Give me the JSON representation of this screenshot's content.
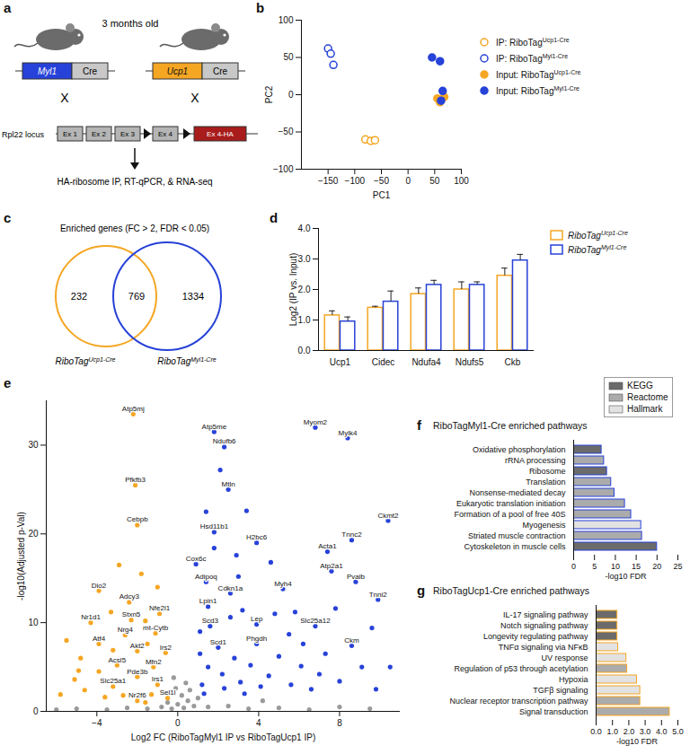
{
  "chart_data": [
    {
      "type": "diagram",
      "panel": "a",
      "title": "3 months old",
      "left": {
        "gene": "Myl1",
        "driver": "Cre",
        "color": "#2742d8"
      },
      "right": {
        "gene": "Ucp1",
        "driver": "Cre",
        "color": "#f5a623"
      },
      "cross": "X",
      "locus": {
        "name": "Rpl22 locus",
        "exons": [
          "Ex 1",
          "Ex 2",
          "Ex 3",
          "Ex 4"
        ],
        "tagged_exon": "Ex 4-HA"
      },
      "caption": "HA-ribosome IP, RT-qPCR, & RNA-seq"
    },
    {
      "type": "scatter",
      "panel": "b",
      "xlabel": "PC1",
      "ylabel": "PC2",
      "xlim": [
        -200,
        100
      ],
      "xticks": [
        -150,
        -100,
        -50,
        0,
        50,
        100
      ],
      "ylim": [
        -100,
        100
      ],
      "yticks": [
        -100,
        -50,
        0,
        50,
        100
      ],
      "legend": "right",
      "series": [
        {
          "name": "IP: RiboTagUcp1-Cre",
          "superscript": "Ucp1-Cre",
          "color": "#f5a623",
          "marker": "circle-open",
          "x": [
            -80,
            -70,
            -62
          ],
          "y": [
            -60,
            -62,
            -61
          ]
        },
        {
          "name": "IP: RiboTagMyl1-Cre",
          "superscript": "Myl1-Cre",
          "color": "#2742d8",
          "marker": "circle-open",
          "x": [
            -150,
            -145,
            -140
          ],
          "y": [
            62,
            55,
            40
          ]
        },
        {
          "name": "Input: RiboTagUcp1-Cre",
          "superscript": "Ucp1-Cre",
          "color": "#f5a623",
          "marker": "circle",
          "x": [
            55,
            60,
            68
          ],
          "y": [
            -5,
            -10,
            -3
          ]
        },
        {
          "name": "Input: RiboTagMyl1-Cre",
          "superscript": "Myl1-Cre",
          "color": "#2742d8",
          "marker": "circle",
          "x": [
            45,
            60,
            65,
            62
          ],
          "y": [
            50,
            45,
            5,
            -8
          ]
        }
      ]
    },
    {
      "type": "venn",
      "panel": "c",
      "title": "Enriched genes (FC > 2, FDR < 0.05)",
      "sets": [
        {
          "name": "RiboTagUcp1-Cre",
          "superscript": "Ucp1-Cre",
          "color": "#f5a623",
          "only": 232
        },
        {
          "name": "RiboTagMyl1-Cre",
          "superscript": "Myl1-Cre",
          "color": "#2742d8",
          "only": 1334
        }
      ],
      "intersection": 769
    },
    {
      "type": "bar",
      "panel": "d",
      "ylabel": "Log2 (IP vs. Input)",
      "categories": [
        "Ucp1",
        "Cidec",
        "Ndufa4",
        "Ndufs5",
        "Ckb"
      ],
      "ylim": [
        0,
        4
      ],
      "yticks": [
        0,
        1,
        2,
        3,
        4
      ],
      "legend": "right",
      "series": [
        {
          "name": "RiboTagUcp1-Cre",
          "superscript": "Ucp1-Cre",
          "color": "#f5a623",
          "values": [
            1.15,
            1.4,
            1.85,
            2.0,
            2.45
          ],
          "errors": [
            0.15,
            0.05,
            0.2,
            0.25,
            0.25
          ]
        },
        {
          "name": "RiboTagMyl1-Cre",
          "superscript": "Myl1-Cre",
          "color": "#2742d8",
          "values": [
            0.95,
            1.6,
            2.15,
            2.15,
            2.95
          ],
          "errors": [
            0.15,
            0.35,
            0.15,
            0.1,
            0.2
          ]
        }
      ]
    },
    {
      "type": "scatter",
      "panel": "e",
      "xlabel": "Log2 FC (RiboTagMyl1 IP vs RiboTagUcp1 IP)",
      "ylabel": "-log10(Adjusted p-Val)",
      "xlim": [
        -6.5,
        11
      ],
      "xticks": [
        -4,
        0,
        4,
        8
      ],
      "ylim": [
        0,
        35
      ],
      "yticks": [
        0,
        10,
        20,
        30
      ],
      "series": [
        {
          "color": "#9a9a9a",
          "points": [
            [
              -0.8,
              0.5
            ],
            [
              -0.5,
              1.0
            ],
            [
              -0.3,
              0.3
            ],
            [
              0.0,
              0.8
            ],
            [
              0.3,
              0.4
            ],
            [
              0.5,
              1.2
            ],
            [
              0.8,
              0.6
            ],
            [
              -1.5,
              0.3
            ],
            [
              -2.5,
              0.4
            ],
            [
              -3.5,
              0.2
            ],
            [
              -5.0,
              0.3
            ],
            [
              1.5,
              0.5
            ],
            [
              2.5,
              0.6
            ],
            [
              3.5,
              0.3
            ],
            [
              5.0,
              0.4
            ],
            [
              6.5,
              0.2
            ],
            [
              8.0,
              0.5
            ],
            [
              0.2,
              1.8
            ],
            [
              -0.1,
              2.6
            ],
            [
              0.6,
              2.4
            ],
            [
              9.5,
              0.3
            ],
            [
              -6.0,
              0.2
            ],
            [
              1.0,
              1.5
            ],
            [
              4.2,
              1.2
            ],
            [
              0.4,
              3.2
            ],
            [
              -0.2,
              3.8
            ]
          ]
        },
        {
          "color": "#f5a623",
          "points": [
            [
              -1.3,
              1.9
            ],
            [
              -1.6,
              1.0
            ],
            [
              -2.7,
              1.8
            ],
            [
              -3.6,
              1.6
            ],
            [
              -4.6,
              2.4
            ],
            [
              -5.1,
              3.6
            ],
            [
              -5.8,
              1.9
            ],
            [
              -3.9,
              4.5
            ],
            [
              -4.8,
              6.0
            ],
            [
              -3.2,
              6.9
            ],
            [
              -1.6,
              10.2
            ],
            [
              -3.3,
              11.2
            ],
            [
              -5.5,
              8.0
            ],
            [
              -1.0,
              14.0
            ],
            [
              -1.8,
              15.5
            ],
            [
              -2.9,
              16.5
            ],
            [
              -4.9,
              4.6
            ],
            [
              -1.5,
              7.6
            ],
            [
              -2.2,
              33.5,
              "Atp5mj"
            ],
            [
              -2.1,
              25.5,
              "Pfkfb3"
            ],
            [
              -2.0,
              21.0,
              "Cebpb"
            ],
            [
              -3.9,
              13.6,
              "Dio2"
            ],
            [
              -2.4,
              12.3,
              "Adcy3"
            ],
            [
              -4.3,
              10.0,
              "Nr1d1"
            ],
            [
              -2.3,
              10.3,
              "Stxn5"
            ],
            [
              -0.9,
              11.0,
              "Nfe2l1"
            ],
            [
              -2.6,
              8.6,
              "Nrg4"
            ],
            [
              -3.9,
              7.6,
              "Atf4"
            ],
            [
              -1.1,
              8.8,
              "mt-Cytb"
            ],
            [
              -2.0,
              6.8,
              "Akt2"
            ],
            [
              -0.6,
              6.6,
              "Irs2"
            ],
            [
              -3.0,
              5.2,
              "Acsl5"
            ],
            [
              -1.2,
              5.0,
              "Mfn2"
            ],
            [
              -2.0,
              3.9,
              "Pde3b"
            ],
            [
              -3.2,
              2.8,
              "Slc25a1"
            ],
            [
              -1.0,
              3.0,
              "Irs1"
            ],
            [
              -2.0,
              1.2,
              "Nr2f6"
            ],
            [
              -0.5,
              1.5,
              "Sel1l"
            ]
          ]
        },
        {
          "color": "#2742d8",
          "points": [
            [
              1.2,
              3.0
            ],
            [
              1.5,
              5.0
            ],
            [
              2.2,
              4.2
            ],
            [
              2.8,
              6.0
            ],
            [
              3.1,
              3.3
            ],
            [
              3.6,
              5.2
            ],
            [
              4.5,
              4.0
            ],
            [
              5.0,
              6.2
            ],
            [
              5.6,
              3.0
            ],
            [
              6.1,
              5.1
            ],
            [
              7.0,
              4.2
            ],
            [
              8.0,
              3.4
            ],
            [
              9.1,
              5.0
            ],
            [
              1.3,
              2.0
            ],
            [
              2.3,
              2.6
            ],
            [
              3.3,
              2.0
            ],
            [
              4.1,
              2.8
            ],
            [
              6.6,
              2.5
            ],
            [
              1.1,
              6.5
            ],
            [
              3.0,
              15.2
            ],
            [
              2.9,
              17.6
            ],
            [
              1.4,
              22.5
            ],
            [
              3.4,
              22.6
            ],
            [
              4.6,
              16.8
            ],
            [
              5.8,
              11.2
            ],
            [
              6.2,
              7.6
            ],
            [
              7.8,
              11.6
            ],
            [
              9.6,
              9.4
            ],
            [
              10.5,
              5.0
            ],
            [
              4.8,
              11.0
            ],
            [
              3.2,
              11.4
            ],
            [
              2.1,
              27.2
            ],
            [
              1.1,
              9.0
            ],
            [
              1.8,
              18.4
            ],
            [
              5.5,
              8.7
            ],
            [
              7.3,
              6.5
            ],
            [
              9.8,
              2.5
            ],
            [
              2.6,
              10.6
            ],
            [
              1.8,
              31.5,
              "Atp5me"
            ],
            [
              2.3,
              29.8,
              "Ndufb6"
            ],
            [
              6.8,
              32.0,
              "Myom2"
            ],
            [
              8.4,
              30.8,
              "Mylk4"
            ],
            [
              2.5,
              25.0,
              "Mtln"
            ],
            [
              10.4,
              21.5,
              "Ckmt2"
            ],
            [
              1.8,
              20.2,
              "Hsd11b1"
            ],
            [
              3.9,
              19.0,
              "H2bc6"
            ],
            [
              8.6,
              19.3,
              "Tnnc2"
            ],
            [
              7.4,
              18.0,
              "Acta1"
            ],
            [
              7.6,
              15.8,
              "Atp2a1"
            ],
            [
              0.9,
              16.6,
              "Cox6c"
            ],
            [
              1.4,
              14.6,
              "Adipoq"
            ],
            [
              2.6,
              13.3,
              "Cdkn1a"
            ],
            [
              5.2,
              13.8,
              "Myh4"
            ],
            [
              8.8,
              14.6,
              "Pvalb"
            ],
            [
              9.9,
              12.6,
              "Tnni2"
            ],
            [
              1.5,
              11.8,
              "Lpin1"
            ],
            [
              1.6,
              9.6,
              "Scd3"
            ],
            [
              3.9,
              9.8,
              "Lep"
            ],
            [
              6.8,
              9.6,
              "Slc25a12"
            ],
            [
              3.9,
              7.6,
              "Phgdh"
            ],
            [
              2.0,
              7.2,
              "Scd1"
            ],
            [
              8.6,
              7.4,
              "Ckm"
            ]
          ]
        }
      ]
    },
    {
      "type": "legend",
      "legend": "top-right",
      "entries": [
        {
          "name": "KEGG",
          "color": "#6b6b6b"
        },
        {
          "name": "Reactome",
          "color": "#ababab"
        },
        {
          "name": "Hallmark",
          "color": "#e2e2e2"
        }
      ]
    },
    {
      "type": "bar",
      "panel": "f",
      "orientation": "horizontal",
      "title": "RiboTagMyl1-Cre enriched pathways",
      "superscript": "Myl1-Cre",
      "color": "#2742d8",
      "xlabel": "-log10 FDR",
      "xlim": [
        0,
        25
      ],
      "xticks": [
        0,
        5,
        10,
        15,
        20,
        25
      ],
      "categories": [
        "Oxidative phosphorylation",
        "rRNA processing",
        "Ribosome",
        "Translation",
        "Nonsense-mediated decay",
        "Eukaryotic translation initiation",
        "Formation of a pool of free 40S",
        "Myogenesis",
        "Striated muscle contraction",
        "Cytoskeleton in muscle cells"
      ],
      "values": [
        6.7,
        7.3,
        8.0,
        9.0,
        9.8,
        12.3,
        13.8,
        16.2,
        16.4,
        20.0
      ],
      "groups": [
        "KEGG",
        "Reactome",
        "KEGG",
        "Reactome",
        "Reactome",
        "Reactome",
        "Reactome",
        "Hallmark",
        "Reactome",
        "KEGG"
      ]
    },
    {
      "type": "bar",
      "panel": "g",
      "orientation": "horizontal",
      "title": "RiboTagUcp1-Cre enriched pathways",
      "superscript": "Ucp1-Cre",
      "color": "#f5a623",
      "xlabel": "-log10 FDR",
      "xlim": [
        0,
        5
      ],
      "xticks": [
        0,
        1,
        2,
        3,
        4,
        5
      ],
      "categories": [
        "IL-17 signaling pathway",
        "Notch signaling pathway",
        "Longevity regulating pathway",
        "TNFα signaling via NFκB",
        "UV response",
        "Regulation of p53 through acetylation",
        "Hypoxia",
        "TGFβ signaling",
        "Nuclear receptor transcription pathway",
        "Signal transduction"
      ],
      "values": [
        1.3,
        1.3,
        1.3,
        1.35,
        1.85,
        1.9,
        2.5,
        2.7,
        2.7,
        4.5
      ],
      "groups": [
        "KEGG",
        "KEGG",
        "KEGG",
        "Hallmark",
        "Hallmark",
        "Reactome",
        "Hallmark",
        "Hallmark",
        "Reactome",
        "Reactome"
      ]
    }
  ]
}
